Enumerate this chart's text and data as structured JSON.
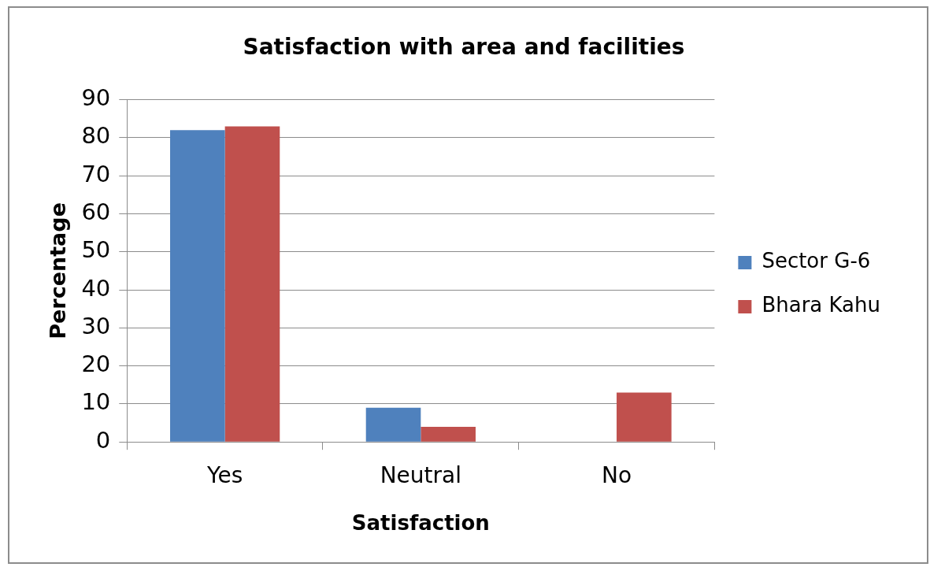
{
  "chart_data": {
    "type": "bar",
    "title": "Satisfaction with area and facilities",
    "xlabel": "Satisfaction",
    "ylabel": "Percentage",
    "categories": [
      "Yes",
      "Neutral",
      "No"
    ],
    "series": [
      {
        "name": "Sector G-6",
        "color": "#4f81bd",
        "values": [
          82,
          9,
          0
        ]
      },
      {
        "name": "Bhara Kahu",
        "color": "#c0504d",
        "values": [
          83,
          4,
          13
        ]
      }
    ],
    "ylim": [
      0,
      90
    ],
    "yticks": [
      0,
      10,
      20,
      30,
      40,
      50,
      60,
      70,
      80,
      90
    ],
    "grid": "y",
    "legend": "right"
  }
}
